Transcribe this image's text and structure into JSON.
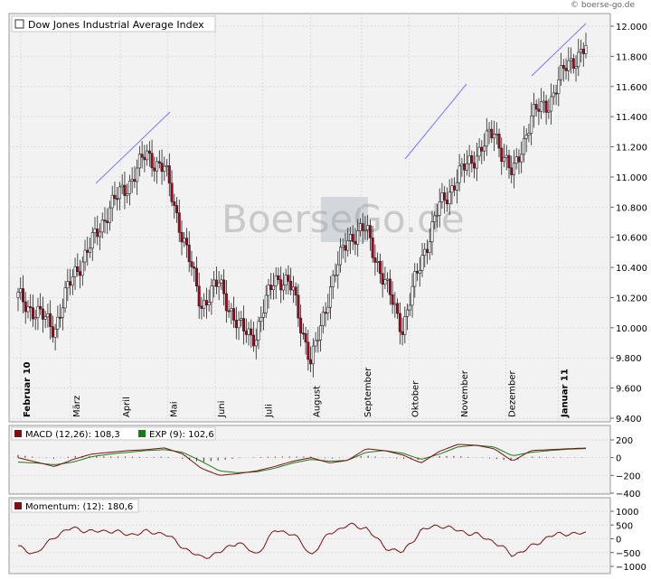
{
  "copyright": "© boerse-go.de",
  "watermark": "BoerseGo.de",
  "price_panel": {
    "legend": "Dow Jones Industrial Average Index",
    "y_ticks": [
      "12.000",
      "11.800",
      "11.600",
      "11.400",
      "11.200",
      "11.000",
      "10.800",
      "10.600",
      "10.400",
      "10.200",
      "10.000",
      "9.800",
      "9.600",
      "9.400"
    ],
    "months": [
      {
        "label": "Februar 10",
        "bold": true,
        "x": 0.005
      },
      {
        "label": "März",
        "bold": false,
        "x": 0.1
      },
      {
        "label": "April",
        "bold": false,
        "x": 0.195
      },
      {
        "label": "Mai",
        "bold": false,
        "x": 0.285
      },
      {
        "label": "Juni",
        "bold": false,
        "x": 0.376
      },
      {
        "label": "Juli",
        "bold": false,
        "x": 0.466
      },
      {
        "label": "August",
        "bold": false,
        "x": 0.558
      },
      {
        "label": "September",
        "bold": false,
        "x": 0.655
      },
      {
        "label": "Oktober",
        "bold": false,
        "x": 0.746
      },
      {
        "label": "November",
        "bold": false,
        "x": 0.84
      },
      {
        "label": "Dezember",
        "bold": false,
        "x": 0.93
      },
      {
        "label": "Januar 11",
        "bold": true,
        "x": 1.03
      }
    ]
  },
  "macd_panel": {
    "legend_macd": "MACD (12,26): 108,3",
    "legend_exp": "EXP (9): 102,6",
    "y_ticks": [
      "200",
      "0",
      "−200",
      "−400"
    ]
  },
  "momentum_panel": {
    "legend": "Momentum: (12): 180,6",
    "y_ticks": [
      "1000",
      "500",
      "0",
      "−500",
      "−1000"
    ]
  },
  "colors": {
    "up": "#1a8a1a",
    "down": "#b0001a",
    "macd": "#7a1010",
    "exp": "#1a7a1a",
    "momentum": "#7a1010",
    "trend": "#7878ff",
    "panel_bg": "#f2f2f2"
  },
  "chart_data": [
    {
      "type": "candlestick",
      "title": "Dow Jones Industrial Average Index",
      "x_range": [
        "Februar 10",
        "Januar 11"
      ],
      "ylim": [
        9400,
        12100
      ],
      "series": [
        {
          "name": "Dow Jones Industrial Average Index",
          "x": [
            "Feb",
            "Feb",
            "Mar",
            "Mar",
            "Apr",
            "Apr",
            "Apr",
            "May",
            "May",
            "May",
            "Jun",
            "Jun",
            "Jun",
            "Jul",
            "Jul",
            "Jul",
            "Aug",
            "Aug",
            "Aug",
            "Sep",
            "Sep",
            "Sep",
            "Oct",
            "Oct",
            "Nov",
            "Nov",
            "Nov",
            "Dec",
            "Dec",
            "Dec",
            "Jan",
            "Jan"
          ],
          "values": [
            10200,
            10100,
            10000,
            10350,
            10550,
            10800,
            10950,
            11150,
            11050,
            10600,
            10150,
            10300,
            10000,
            9950,
            10350,
            10250,
            9750,
            10250,
            10600,
            10650,
            10300,
            10000,
            10450,
            10800,
            11000,
            11150,
            11300,
            11000,
            11400,
            11500,
            11750,
            11850
          ]
        }
      ]
    },
    {
      "type": "line",
      "title": "MACD",
      "ylim": [
        -400,
        200
      ],
      "series": [
        {
          "name": "MACD (12,26)",
          "values": [
            0,
            -50,
            -100,
            -20,
            40,
            60,
            80,
            90,
            110,
            40,
            -120,
            -200,
            -180,
            -150,
            -100,
            -40,
            0,
            -60,
            -30,
            100,
            80,
            30,
            -60,
            70,
            150,
            140,
            100,
            -40,
            80,
            90,
            100,
            108.3
          ]
        },
        {
          "name": "EXP (9)",
          "values": [
            -50,
            -60,
            -80,
            -50,
            10,
            40,
            60,
            80,
            90,
            60,
            -40,
            -150,
            -170,
            -160,
            -120,
            -60,
            -20,
            -40,
            -30,
            60,
            80,
            50,
            -20,
            40,
            120,
            140,
            120,
            20,
            60,
            80,
            95,
            102.6
          ]
        }
      ]
    },
    {
      "type": "line",
      "title": "Momentum",
      "ylim": [
        -1000,
        1000
      ],
      "series": [
        {
          "name": "Momentum (12)",
          "values": [
            -300,
            -550,
            100,
            400,
            250,
            300,
            150,
            250,
            200,
            -300,
            -700,
            -500,
            -100,
            -600,
            300,
            200,
            -600,
            200,
            500,
            400,
            -300,
            -500,
            300,
            500,
            300,
            150,
            -100,
            -600,
            -300,
            100,
            200,
            180.6
          ]
        }
      ]
    }
  ]
}
